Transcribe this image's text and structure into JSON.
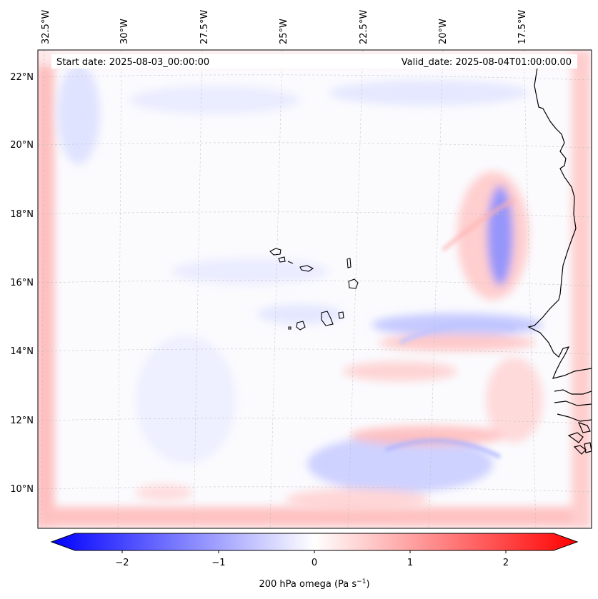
{
  "figure": {
    "start_date": "Start date: 2025-08-03_00:00:00",
    "valid_date": "Valid_date: 2025-08-04T01:00:00.00"
  },
  "axes": {
    "lon_labels": [
      "32.5°W",
      "30°W",
      "27.5°W",
      "25°W",
      "22.5°W",
      "20°W",
      "17.5°W"
    ],
    "lat_labels": [
      "22°N",
      "20°N",
      "18°N",
      "16°N",
      "14°N",
      "12°N",
      "10°N"
    ]
  },
  "colorbar": {
    "ticks": [
      "−2",
      "−1",
      "0",
      "1",
      "2"
    ],
    "label_main": "200 hPa omega (Pa s",
    "label_sup": "−1",
    "label_end": ")",
    "min": -2.6,
    "max": 2.6,
    "colors": {
      "low": "#0000ff",
      "mid": "#ffffff",
      "high": "#ff0000"
    }
  },
  "chart_data": {
    "type": "heatmap",
    "title": "",
    "variable": "200 hPa omega",
    "units": "Pa s-1",
    "x_range": [
      -33.0,
      -16.0
    ],
    "y_range": [
      9.0,
      22.6
    ],
    "notes": "Mostly near-zero omega; positive (red) boundary band along domain edges; banded blue/red features near the West African coast around 16-18N and 10-12N."
  }
}
